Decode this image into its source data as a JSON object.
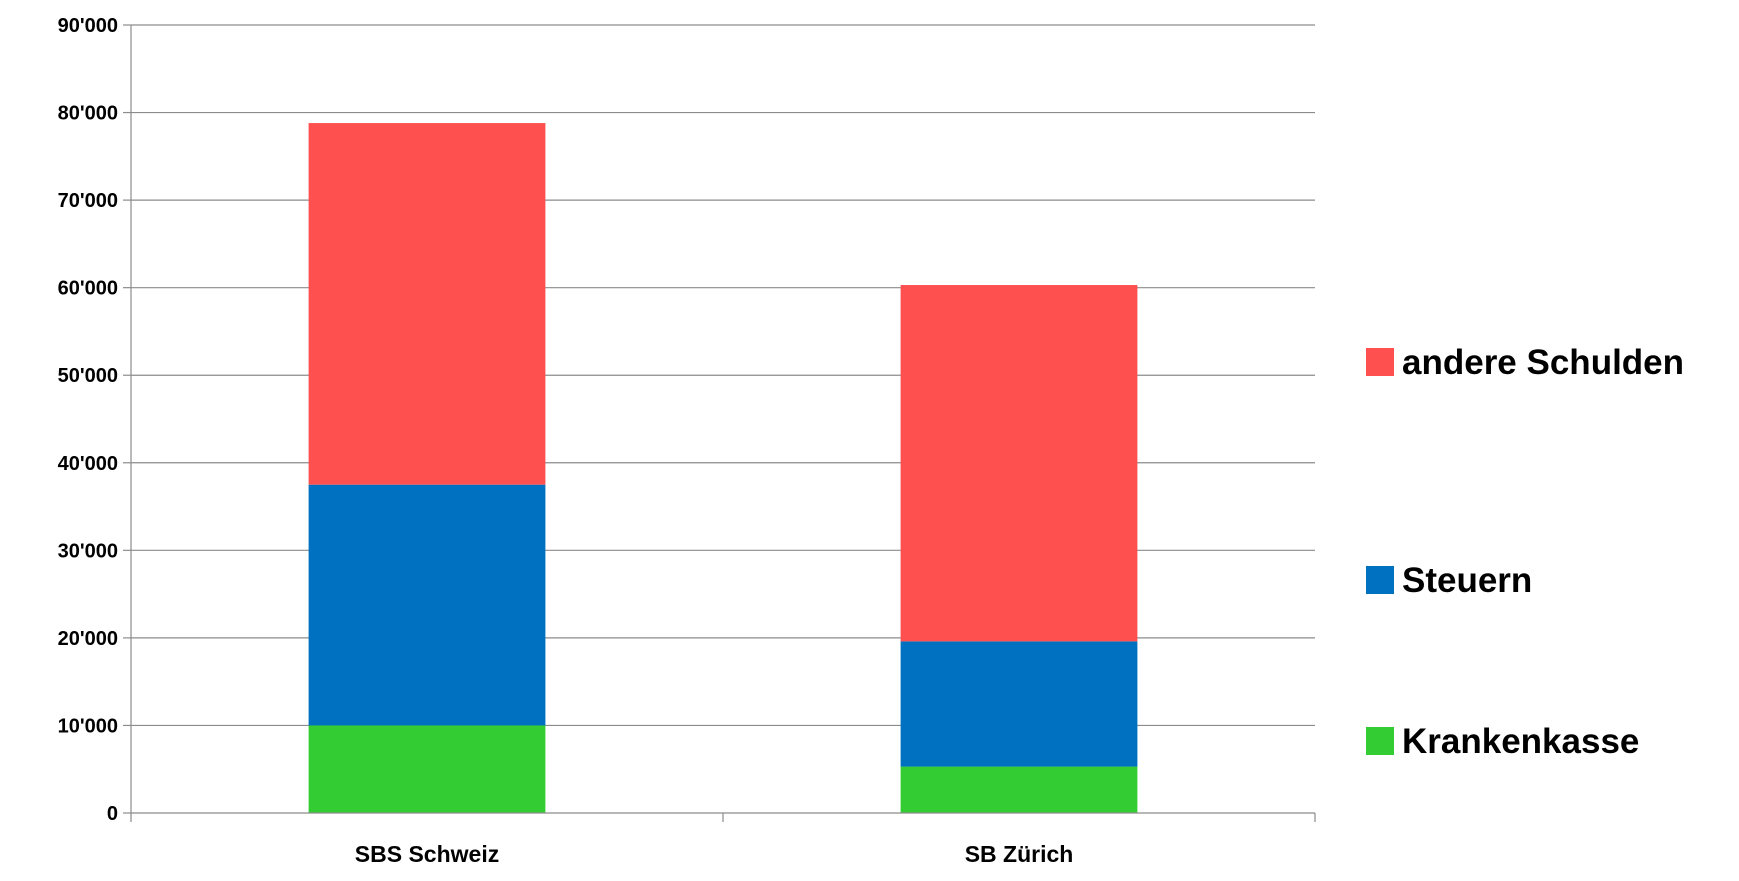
{
  "chart_data": {
    "type": "bar",
    "stacked": true,
    "categories": [
      "SBS Schweiz",
      "SB Zürich"
    ],
    "series": [
      {
        "name": "Krankenkasse",
        "color": "#33cc33",
        "values": [
          10000,
          5300
        ]
      },
      {
        "name": "Steuern",
        "color": "#0070c0",
        "values": [
          27500,
          14300
        ]
      },
      {
        "name": "andere Schulden",
        "color": "#ff5050",
        "values": [
          41300,
          40700
        ]
      }
    ],
    "ylim": [
      0,
      90000
    ],
    "yticks": [
      0,
      10000,
      20000,
      30000,
      40000,
      50000,
      60000,
      70000,
      80000,
      90000
    ],
    "ytick_labels": [
      "0",
      "10'000",
      "20'000",
      "30'000",
      "40'000",
      "50'000",
      "60'000",
      "70'000",
      "80'000",
      "90'000"
    ],
    "grid": true,
    "legend_position": "right",
    "legend_order": [
      "andere Schulden",
      "Steuern",
      "Krankenkasse"
    ],
    "title": "",
    "xlabel": "",
    "ylabel": ""
  }
}
